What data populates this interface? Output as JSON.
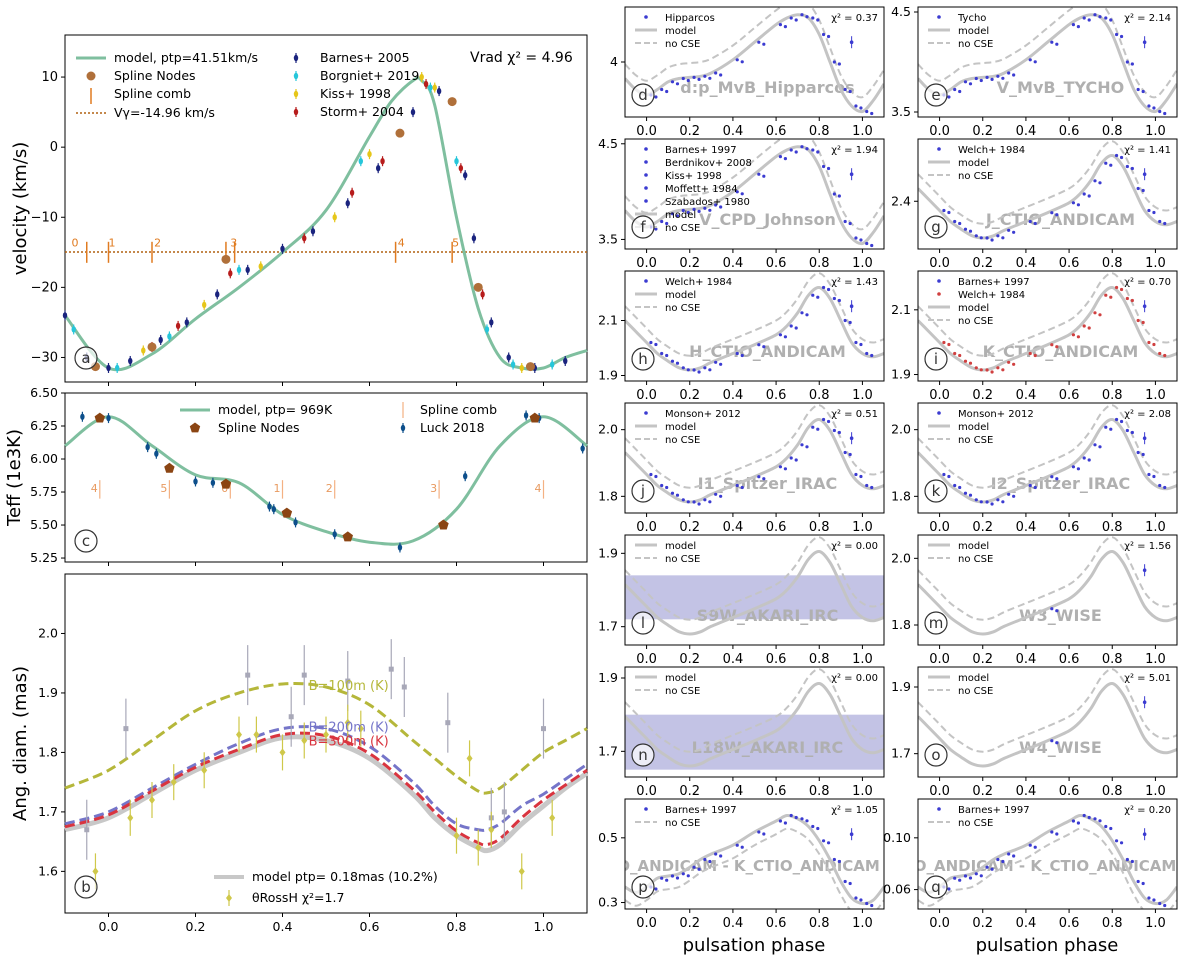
{
  "chart_data": [
    {
      "id": "a",
      "panel_letter": "a",
      "type": "line",
      "ylabel": "velocity (km/s)",
      "xlabel": "",
      "xlim": [
        -0.1,
        1.1
      ],
      "ylim": [
        -33.5,
        16
      ],
      "xticks": [
        0.0,
        0.2,
        0.4,
        0.6,
        0.8,
        1.0
      ],
      "xtick_labels": [
        "",
        "",
        "",
        "",
        "",
        ""
      ],
      "yticks": [
        -30,
        -20,
        -10,
        0,
        10
      ],
      "ytick_labels": [
        "−30",
        "−20",
        "−10",
        "0",
        "10"
      ],
      "annotation": "Vrad χ² = 4.96",
      "legend_left": [
        "model, ptp=41.51km/s",
        "Spline Nodes",
        "Spline comb",
        "Vγ=-14.96 km/s"
      ],
      "legend_right": [
        "Barnes+ 2005",
        "Borgniet+ 2019",
        "Kiss+ 1998",
        "Storm+ 2004"
      ],
      "colors": {
        "model": "#7fbf9f",
        "nodes": "#b0703a",
        "comb": "#e07b20",
        "vgamma": "#b06010",
        "Barnes": "#1a237e",
        "Borgniet": "#26c6da",
        "Kiss": "#e6c619",
        "Storm": "#b71c1c"
      },
      "vgamma": -14.96,
      "comb_x": [
        -0.05,
        0.0,
        0.1,
        0.27,
        0.29,
        0.66,
        0.79
      ],
      "comb_labels": [
        "0",
        "1",
        "2",
        "3",
        "4",
        "5"
      ],
      "comb_label_x": [
        -0.085,
        0.0,
        0.105,
        0.28,
        0.665,
        0.79
      ],
      "model": {
        "x": [
          -0.1,
          0.0,
          0.1,
          0.2,
          0.3,
          0.4,
          0.5,
          0.6,
          0.65,
          0.7,
          0.72,
          0.75,
          0.8,
          0.85,
          0.9,
          0.95,
          1.0,
          1.05,
          1.1
        ],
        "y": [
          -24,
          -31.5,
          -29.5,
          -24.5,
          -20,
          -15,
          -9,
          1.5,
          6.5,
          9.5,
          9.5,
          6,
          -10,
          -23,
          -30,
          -31.5,
          -31.5,
          -30,
          -29
        ]
      },
      "nodes": {
        "x": [
          -0.03,
          0.1,
          0.27,
          0.67,
          0.79,
          0.85,
          0.97
        ],
        "y": [
          -31.3,
          -28.5,
          -16,
          2,
          6.5,
          -20,
          -31.3
        ]
      },
      "series": [
        {
          "name": "Barnes+ 2005",
          "x": [
            -0.1,
            -0.05,
            0.0,
            0.05,
            0.12,
            0.18,
            0.25,
            0.32,
            0.4,
            0.47,
            0.55,
            0.62,
            0.7,
            0.76,
            0.82,
            0.84,
            0.88,
            0.92,
            0.98,
            1.05
          ],
          "y": [
            -24,
            -30,
            -31.5,
            -30.5,
            -27.5,
            -25,
            -21,
            -17.5,
            -14.5,
            -12,
            -8,
            -3,
            5,
            8,
            -4,
            -13,
            -25,
            -30,
            -31.5,
            -30.5
          ]
        },
        {
          "name": "Borgniet+ 2019",
          "x": [
            -0.08,
            0.02,
            0.14,
            0.3,
            0.58,
            0.74,
            0.8,
            0.87,
            0.93,
            1.02
          ],
          "y": [
            -26,
            -31.5,
            -27,
            -17.5,
            -2,
            8.5,
            -2,
            -26,
            -31,
            -31
          ]
        },
        {
          "name": "Kiss+ 1998",
          "x": [
            0.08,
            0.22,
            0.35,
            0.52,
            0.6,
            0.72,
            0.75,
            0.95
          ],
          "y": [
            -29,
            -22.5,
            -17,
            -10,
            -1,
            10,
            8.5,
            -31.5
          ]
        },
        {
          "name": "Storm+ 2004",
          "x": [
            0.1,
            0.16,
            0.28,
            0.45,
            0.56,
            0.63,
            0.73,
            0.81,
            0.86
          ],
          "y": [
            -28.5,
            -25.5,
            -18,
            -13,
            -6.5,
            -2,
            9,
            -3,
            -21
          ]
        }
      ]
    },
    {
      "id": "c",
      "panel_letter": "c",
      "type": "line",
      "ylabel": "Teff (1e3K)",
      "xlim": [
        -0.1,
        1.1
      ],
      "ylim": [
        5.22,
        6.5
      ],
      "xticks": [
        0.0,
        0.2,
        0.4,
        0.6,
        0.8,
        1.0
      ],
      "yticks": [
        5.25,
        5.5,
        5.75,
        6.0,
        6.25,
        6.5
      ],
      "ytick_labels": [
        "5.25",
        "5.50",
        "5.75",
        "6.00",
        "6.25",
        "6.50"
      ],
      "legend": [
        "model, ptp= 969K",
        "Spline Nodes",
        "Spline comb",
        "Luck 2018"
      ],
      "colors": {
        "model": "#7fbf9f",
        "nodes": "#8b4513",
        "comb": "#f4b183",
        "data": "#0d4f8b"
      },
      "comb_x": [
        -0.02,
        0.14,
        0.28,
        0.4,
        0.52,
        0.76,
        1.0
      ],
      "comb_labels": [
        "4",
        "5",
        "0",
        "1",
        "2",
        "3",
        "4"
      ],
      "model": {
        "x": [
          -0.1,
          0.0,
          0.1,
          0.2,
          0.3,
          0.4,
          0.5,
          0.6,
          0.7,
          0.8,
          0.9,
          1.0,
          1.1
        ],
        "y": [
          6.1,
          6.32,
          6.1,
          5.88,
          5.82,
          5.58,
          5.45,
          5.37,
          5.38,
          5.62,
          6.1,
          6.32,
          6.1
        ]
      },
      "nodes": {
        "x": [
          -0.02,
          0.14,
          0.27,
          0.41,
          0.55,
          0.77,
          0.98
        ],
        "y": [
          6.31,
          5.93,
          5.81,
          5.59,
          5.41,
          5.5,
          6.31
        ]
      },
      "series": [
        {
          "name": "Luck 2018",
          "x": [
            -0.06,
            0.0,
            0.09,
            0.11,
            0.2,
            0.24,
            0.37,
            0.38,
            0.43,
            0.52,
            0.67,
            0.82,
            0.96,
            0.99,
            1.09
          ],
          "y": [
            6.32,
            6.31,
            6.09,
            6.04,
            5.83,
            5.82,
            5.64,
            5.62,
            5.52,
            5.43,
            5.33,
            5.87,
            6.33,
            6.31,
            6.08
          ]
        }
      ]
    },
    {
      "id": "b",
      "panel_letter": "b",
      "type": "line",
      "ylabel": "Ang. diam. (mas)",
      "xlim": [
        -0.1,
        1.1
      ],
      "ylim": [
        1.53,
        2.1
      ],
      "xticks": [
        0.0,
        0.2,
        0.4,
        0.6,
        0.8,
        1.0
      ],
      "xtick_labels": [
        "0.0",
        "0.2",
        "0.4",
        "0.6",
        "0.8",
        "1.0"
      ],
      "yticks": [
        1.6,
        1.7,
        1.8,
        1.9,
        2.0
      ],
      "ytick_labels": [
        "1.6",
        "1.7",
        "1.8",
        "1.9",
        "2.0"
      ],
      "legend": [
        "model ptp= 0.18mas (10.2%)",
        "θRossH χ²=1.7"
      ],
      "curve_labels": [
        "B=100m (K)",
        "B=200m (K)",
        "B=300m (K)"
      ],
      "colors": {
        "model": "#c8c8c8",
        "b100": "#b5b73a",
        "b200": "#7575c9",
        "b300": "#d9343f",
        "data": "#cfc84a",
        "data_grey": "#a8a8b8"
      },
      "model": {
        "x": [
          -0.1,
          0.0,
          0.1,
          0.2,
          0.3,
          0.4,
          0.5,
          0.6,
          0.7,
          0.75,
          0.8,
          0.85,
          0.87,
          0.9,
          0.95,
          1.0,
          1.05,
          1.1
        ],
        "y": [
          1.67,
          1.69,
          1.73,
          1.77,
          1.8,
          1.825,
          1.82,
          1.79,
          1.73,
          1.69,
          1.66,
          1.64,
          1.635,
          1.645,
          1.68,
          1.71,
          1.74,
          1.765
        ]
      },
      "b100": {
        "x": [
          -0.1,
          0.0,
          0.1,
          0.2,
          0.3,
          0.4,
          0.5,
          0.6,
          0.7,
          0.75,
          0.8,
          0.85,
          0.87,
          0.9,
          0.95,
          1.0,
          1.05,
          1.1
        ],
        "y": [
          1.74,
          1.77,
          1.82,
          1.87,
          1.9,
          1.915,
          1.91,
          1.88,
          1.82,
          1.79,
          1.76,
          1.735,
          1.732,
          1.74,
          1.77,
          1.8,
          1.82,
          1.84
        ]
      },
      "b200": {
        "x": [
          -0.1,
          0.0,
          0.1,
          0.2,
          0.3,
          0.4,
          0.5,
          0.6,
          0.7,
          0.75,
          0.8,
          0.85,
          0.87,
          0.9,
          0.95,
          1.0,
          1.05,
          1.1
        ],
        "y": [
          1.68,
          1.7,
          1.74,
          1.78,
          1.815,
          1.84,
          1.84,
          1.81,
          1.75,
          1.71,
          1.68,
          1.67,
          1.67,
          1.68,
          1.71,
          1.73,
          1.755,
          1.78
        ]
      },
      "b300": {
        "x": [
          -0.1,
          0.0,
          0.1,
          0.2,
          0.3,
          0.4,
          0.5,
          0.6,
          0.7,
          0.75,
          0.8,
          0.85,
          0.87,
          0.9,
          0.95,
          1.0,
          1.05,
          1.1
        ],
        "y": [
          1.675,
          1.695,
          1.735,
          1.775,
          1.805,
          1.83,
          1.828,
          1.798,
          1.738,
          1.7,
          1.668,
          1.648,
          1.645,
          1.655,
          1.69,
          1.72,
          1.745,
          1.77
        ]
      },
      "series": [
        {
          "name": "θRossH",
          "x": [
            -0.03,
            0.05,
            0.1,
            0.15,
            0.22,
            0.3,
            0.34,
            0.4,
            0.45,
            0.5,
            0.55,
            0.58,
            0.8,
            0.83,
            0.85,
            0.88,
            0.95,
            1.02
          ],
          "y": [
            1.6,
            1.69,
            1.72,
            1.75,
            1.77,
            1.83,
            1.83,
            1.8,
            1.82,
            1.83,
            1.85,
            1.84,
            1.66,
            1.79,
            1.64,
            1.67,
            1.6,
            1.69
          ]
        },
        {
          "name": "grey",
          "x": [
            -0.05,
            0.04,
            0.32,
            0.42,
            0.45,
            0.55,
            0.65,
            0.68,
            0.78,
            0.88,
            0.91,
            1.0
          ],
          "y": [
            1.67,
            1.84,
            1.93,
            1.86,
            1.93,
            1.92,
            1.94,
            1.91,
            1.85,
            1.69,
            1.7,
            1.84
          ]
        }
      ]
    },
    {
      "id": "d",
      "panel_letter": "d",
      "type": "line",
      "title": "d:p_MvB_Hipparcos",
      "ylim": [
        3.45,
        4.55
      ],
      "yticks": [
        4.0
      ],
      "ytick_labels": [
        "4"
      ],
      "legend": [
        "Hipparcos",
        "model",
        "no CSE"
      ],
      "chi2": "χ² = 0.37",
      "shape": "mag_bright",
      "has_nocse": true
    },
    {
      "id": "e",
      "panel_letter": "e",
      "type": "line",
      "title": "V_MvB_TYCHO",
      "ylim": [
        3.45,
        4.55
      ],
      "yticks": [
        3.5,
        4.5
      ],
      "ytick_labels": [
        "3.5",
        "4.5"
      ],
      "legend": [
        "Tycho",
        "model",
        "no CSE"
      ],
      "chi2": "χ² = 2.14",
      "shape": "mag_bright",
      "has_nocse": true
    },
    {
      "id": "f",
      "panel_letter": "f",
      "type": "line",
      "title": "V_CPD_Johnson",
      "ylim": [
        3.4,
        4.55
      ],
      "yticks": [
        3.5,
        4.5
      ],
      "ytick_labels": [
        "3.5",
        "4.5"
      ],
      "legend": [
        "Barnes+ 1997",
        "Berdnikov+ 2008",
        "Kiss+ 1998",
        "Moffett+ 1984",
        "Szabados+ 1980",
        "model",
        "no CSE"
      ],
      "chi2": "χ² = 1.94",
      "shape": "mag_bright",
      "has_nocse": true
    },
    {
      "id": "g",
      "panel_letter": "g",
      "type": "line",
      "title": "J_CTIO_ANDICAM",
      "ylim": [
        2.17,
        2.7
      ],
      "yticks": [
        2.4
      ],
      "ytick_labels": [
        "2.4"
      ],
      "legend": [
        "Welch+ 1984",
        "model",
        "no CSE"
      ],
      "chi2": "χ² = 1.41",
      "shape": "mag_ir",
      "has_nocse": true
    },
    {
      "id": "h",
      "panel_letter": "h",
      "type": "line",
      "title": "H_CTIO_ANDICAM",
      "ylim": [
        1.88,
        2.28
      ],
      "yticks": [
        1.9,
        2.1
      ],
      "ytick_labels": [
        "1.9",
        "2.1"
      ],
      "legend": [
        "Welch+ 1984",
        "model",
        "no CSE"
      ],
      "chi2": "χ² = 1.43",
      "shape": "mag_ir",
      "has_nocse": true
    },
    {
      "id": "i",
      "panel_letter": "i",
      "type": "line",
      "title": "K_CTIO_ANDICAM",
      "ylim": [
        1.88,
        2.22
      ],
      "yticks": [
        1.9,
        2.1
      ],
      "ytick_labels": [
        "1.9",
        "2.1"
      ],
      "legend": [
        "Barnes+ 1997",
        "Welch+ 1984",
        "model",
        "no CSE"
      ],
      "chi2": "χ² = 0.70",
      "shape": "mag_ir",
      "has_nocse": true
    },
    {
      "id": "j",
      "panel_letter": "j",
      "type": "line",
      "title": "I1_Spitzer_IRAC",
      "ylim": [
        1.75,
        2.08
      ],
      "yticks": [
        1.8,
        2.0
      ],
      "ytick_labels": [
        "1.8",
        "2.0"
      ],
      "legend": [
        "Monson+ 2012",
        "model",
        "no CSE"
      ],
      "chi2": "χ² = 0.51",
      "shape": "mag_ir",
      "has_nocse": true
    },
    {
      "id": "k",
      "panel_letter": "k",
      "type": "line",
      "title": "I2_Spitzer_IRAC",
      "ylim": [
        1.75,
        2.08
      ],
      "yticks": [
        1.8,
        2.0
      ],
      "ytick_labels": [
        "1.8",
        "2.0"
      ],
      "legend": [
        "Monson+ 2012",
        "model",
        "no CSE"
      ],
      "chi2": "χ² = 2.08",
      "shape": "mag_ir",
      "has_nocse": true
    },
    {
      "id": "l",
      "panel_letter": "l",
      "type": "line",
      "title": "S9W_AKARI_IRC",
      "ylim": [
        1.65,
        1.95
      ],
      "yticks": [
        1.7,
        1.9
      ],
      "ytick_labels": [
        "1.7",
        "1.9"
      ],
      "legend": [
        "model",
        "no CSE"
      ],
      "chi2": "χ² = 0.00",
      "shape": "mag_ir",
      "has_nocse": true,
      "band": [
        1.72,
        1.84
      ]
    },
    {
      "id": "m",
      "panel_letter": "m",
      "type": "line",
      "title": "W3_WISE",
      "ylim": [
        1.74,
        2.07
      ],
      "yticks": [
        1.8,
        2.0
      ],
      "ytick_labels": [
        "1.8",
        "2.0"
      ],
      "legend": [
        "model",
        "no CSE"
      ],
      "chi2": "χ² = 1.56",
      "shape": "mag_ir",
      "has_nocse": true
    },
    {
      "id": "n",
      "panel_letter": "n",
      "type": "line",
      "title": "L18W_AKARI_IRC",
      "ylim": [
        1.63,
        1.93
      ],
      "yticks": [
        1.7,
        1.9
      ],
      "ytick_labels": [
        "1.7",
        "1.9"
      ],
      "legend": [
        "model",
        "no CSE"
      ],
      "chi2": "χ² = 0.00",
      "shape": "mag_ir",
      "has_nocse": true,
      "band": [
        1.65,
        1.8
      ]
    },
    {
      "id": "o",
      "panel_letter": "o",
      "type": "line",
      "title": "W4_WISE",
      "ylim": [
        1.63,
        1.96
      ],
      "yticks": [
        1.7,
        1.9
      ],
      "ytick_labels": [
        "1.7",
        "1.9"
      ],
      "legend": [
        "model",
        "no CSE"
      ],
      "chi2": "χ² = 5.01",
      "shape": "mag_ir",
      "has_nocse": true
    },
    {
      "id": "p",
      "panel_letter": "p",
      "type": "line",
      "title": "J_CTIO_ANDICAM - K_CTIO_ANDICAM",
      "ylim": [
        0.28,
        0.62
      ],
      "yticks": [
        0.3,
        0.5
      ],
      "ytick_labels": [
        "0.3",
        "0.5"
      ],
      "legend": [
        "Barnes+ 1997",
        "no CSE"
      ],
      "chi2": "χ² = 1.05",
      "shape": "color",
      "has_nocse": true
    },
    {
      "id": "q",
      "panel_letter": "q",
      "type": "line",
      "title": "H_CTIO_ANDICAM - K_CTIO_ANDICAM",
      "ylim": [
        0.045,
        0.13
      ],
      "yticks": [
        0.06,
        0.1
      ],
      "ytick_labels": [
        "0.06",
        "0.10"
      ],
      "legend": [
        "Barnes+ 1997",
        "no CSE"
      ],
      "chi2": "χ² = 0.20",
      "shape": "color",
      "has_nocse": true
    }
  ],
  "right_xticks": [
    0.0,
    0.2,
    0.4,
    0.6,
    0.8,
    1.0
  ],
  "right_xtick_labels": [
    "0.0",
    "0.2",
    "0.4",
    "0.6",
    "0.8",
    "1.0"
  ],
  "right_xlim": [
    -0.1,
    1.1
  ],
  "xlabel": "pulsation phase"
}
